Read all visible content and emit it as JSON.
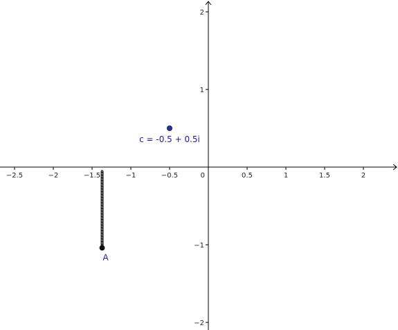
{
  "chart_data": {
    "type": "scatter",
    "title": "",
    "xlabel": "",
    "ylabel": "",
    "xlim": [
      -2.7,
      2.4
    ],
    "ylim": [
      -2.05,
      2.15
    ],
    "grid": false,
    "x_ticks": [
      {
        "value": -2.5,
        "label": "−2.5"
      },
      {
        "value": -2,
        "label": "−2"
      },
      {
        "value": -1.5,
        "label": "−1.5"
      },
      {
        "value": -1,
        "label": "−1"
      },
      {
        "value": -0.5,
        "label": "−0.5"
      },
      {
        "value": 0.5,
        "label": "0.5"
      },
      {
        "value": 1,
        "label": "1"
      },
      {
        "value": 1.5,
        "label": "1.5"
      },
      {
        "value": 2,
        "label": "2"
      }
    ],
    "y_ticks": [
      {
        "value": 2,
        "label": "2"
      },
      {
        "value": 1,
        "label": "1"
      },
      {
        "value": -1,
        "label": "−1"
      },
      {
        "value": -2,
        "label": "−2"
      }
    ],
    "origin_label": "0",
    "points": [
      {
        "label": "c = -0.5 + 0.5i",
        "x": -0.5,
        "y": 0.5,
        "color": "#2233aa"
      },
      {
        "label": "A",
        "x": -1.37,
        "y": -1.04,
        "color": "#111111"
      }
    ],
    "trace": {
      "x": -1.37,
      "y_from": -0.05,
      "y_to": -1.04,
      "color": "#111111"
    },
    "label_color": "#1a1aa8"
  }
}
